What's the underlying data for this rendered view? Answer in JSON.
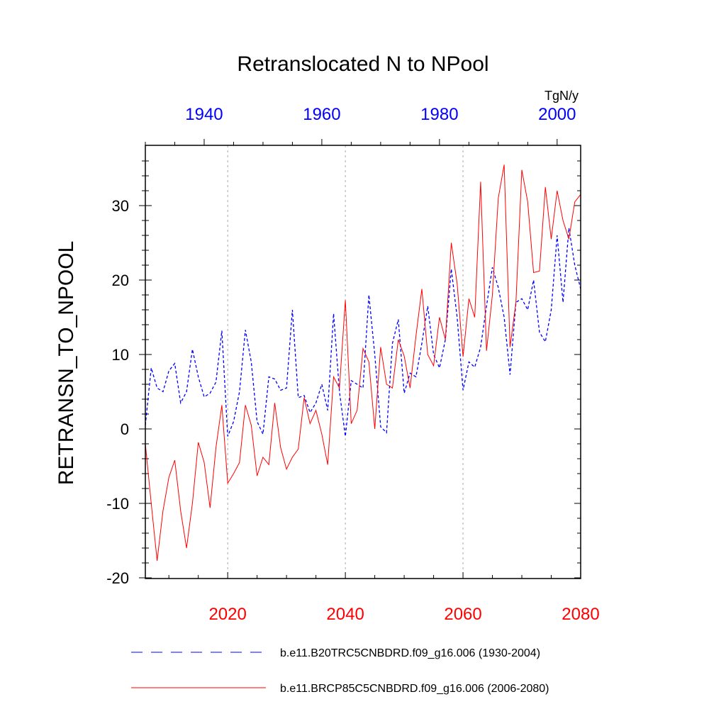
{
  "chart_data": {
    "type": "line",
    "title": "Retranslocated N to NPool",
    "ylabel": "RETRANSN_TO_NPOOL",
    "units": "TgN/y",
    "ylim": [
      -20,
      38
    ],
    "y_ticks": [
      -20,
      -10,
      0,
      10,
      20,
      30
    ],
    "y_tick_labels": [
      "-20",
      "-10",
      "0",
      "10",
      "20",
      "30"
    ],
    "x_bottom": {
      "range": [
        2006,
        2080
      ],
      "ticks": [
        2020,
        2040,
        2060,
        2080
      ],
      "tick_labels": [
        "2020",
        "2040",
        "2060",
        "2080"
      ],
      "color": "#ff0000"
    },
    "x_top": {
      "range": [
        1930,
        2004
      ],
      "ticks": [
        1940,
        1960,
        1980,
        2000
      ],
      "tick_labels": [
        "1940",
        "1960",
        "1980",
        "2000"
      ],
      "color": "#0000ff"
    },
    "gridlines_at": [
      2020,
      2040,
      2060
    ],
    "series": [
      {
        "name": "b.e11.B20TRC5CNBDRD.f09_g16.006 (1930-2004)",
        "color": "#0000ff",
        "style": "dashed",
        "x_start": 1930,
        "values": [
          0.5,
          8.2,
          5.5,
          5.0,
          7.8,
          8.8,
          3.5,
          5.0,
          10.7,
          7.0,
          4.3,
          4.8,
          6.3,
          13.2,
          -1.0,
          1.0,
          5.0,
          13.3,
          9.0,
          1.0,
          -0.7,
          7.0,
          6.7,
          5.2,
          5.5,
          16.0,
          4.2,
          4.5,
          2.2,
          3.5,
          6.0,
          2.5,
          15.5,
          5.0,
          -1.0,
          6.5,
          6.0,
          5.5,
          18.0,
          10.0,
          0.3,
          -0.5,
          11.5,
          14.7,
          4.8,
          7.5,
          7.0,
          11.5,
          16.5,
          10.0,
          8.2,
          12.0,
          21.5,
          15.0,
          5.2,
          9.0,
          8.3,
          11.0,
          16.5,
          21.7,
          19.0,
          15.0,
          7.3,
          17.0,
          17.5,
          16.0,
          20.0,
          13.0,
          11.7,
          16.0,
          26.0,
          17.0,
          27.0,
          22.0,
          18.8
        ]
      },
      {
        "name": "b.e11.BRCP85C5CNBDRD.f09_g16.006 (2006-2080)",
        "color": "#ff0000",
        "style": "solid",
        "x_start": 2006,
        "values": [
          -2.0,
          -10.0,
          -17.7,
          -11.0,
          -6.5,
          -4.2,
          -11.0,
          -16.0,
          -10.0,
          -1.8,
          -4.5,
          -10.6,
          -2.5,
          3.2,
          -7.3,
          -6.0,
          -4.5,
          3.2,
          0.5,
          -6.3,
          -3.8,
          -4.8,
          3.5,
          -2.5,
          -5.4,
          -3.8,
          -2.7,
          4.2,
          0.7,
          2.5,
          -0.7,
          -4.8,
          7.0,
          5.5,
          17.3,
          0.7,
          2.5,
          10.8,
          9.0,
          0.0,
          11.0,
          6.0,
          5.5,
          12.0,
          9.8,
          5.5,
          12.5,
          18.8,
          10.0,
          8.5,
          15.0,
          12.0,
          25.0,
          19.5,
          9.7,
          17.5,
          15.0,
          33.2,
          10.5,
          18.0,
          31.0,
          35.5,
          11.0,
          17.0,
          34.8,
          30.5,
          21.0,
          21.2,
          32.5,
          25.5,
          32.0,
          28.0,
          25.5,
          30.5,
          31.5
        ]
      }
    ],
    "legend_position": "bottom"
  },
  "legend": {
    "series_a_label": "b.e11.B20TRC5CNBDRD.f09_g16.006 (1930-2004)",
    "series_b_label": "b.e11.BRCP85C5CNBDRD.f09_g16.006 (2006-2080)"
  }
}
